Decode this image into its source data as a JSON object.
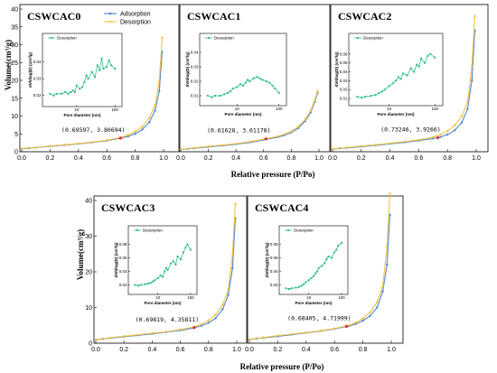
{
  "figure": {
    "ylabel": "Volume(cm³/g)",
    "xlabel": "Relative pressure (P/Po)",
    "legend": [
      "Adsorption",
      "Desorption"
    ]
  },
  "colors": {
    "adsorption": "#4f86d6",
    "desorption": "#f4c242",
    "inset_line": "#2fbf8a",
    "marker": "#e0312b"
  },
  "chart_data": [
    {
      "type": "line",
      "title": "CSWCAC0",
      "xlim": [
        0,
        1.0
      ],
      "ylim": [
        0,
        40
      ],
      "xticks": [
        "0.0",
        "0.2",
        "0.4",
        "0.6",
        "0.8",
        "1.0"
      ],
      "yticks": [
        "0",
        "5",
        "10",
        "15",
        "20",
        "25",
        "30",
        "35",
        "40"
      ],
      "annotation": "(0.69597, 3.80694)",
      "point": [
        0.69597,
        3.80694
      ],
      "series": [
        {
          "name": "Adsorption",
          "x": [
            0.0,
            0.05,
            0.1,
            0.2,
            0.3,
            0.4,
            0.5,
            0.6,
            0.7,
            0.75,
            0.8,
            0.85,
            0.9,
            0.94,
            0.97,
            0.99
          ],
          "y": [
            0.8,
            1.0,
            1.15,
            1.5,
            1.85,
            2.2,
            2.6,
            3.1,
            3.8,
            4.3,
            5.0,
            6.2,
            8.3,
            11.5,
            17.0,
            28.0
          ]
        },
        {
          "name": "Desorption",
          "x": [
            0.99,
            0.97,
            0.94,
            0.9,
            0.85,
            0.8,
            0.75,
            0.7,
            0.6,
            0.5,
            0.4,
            0.3,
            0.2,
            0.1,
            0.0
          ],
          "y": [
            32.0,
            20.0,
            13.0,
            9.5,
            7.0,
            5.6,
            4.7,
            4.0,
            3.2,
            2.7,
            2.3,
            1.95,
            1.6,
            1.2,
            0.9
          ]
        }
      ],
      "inset": {
        "xlabel": "Pore diameter (nm)",
        "ylabel": "dV/dlog(D) (cm³/g)",
        "legend": "Desorption",
        "xticks": [
          "10",
          "100"
        ],
        "yticks": [
          "0.02",
          "0.03",
          "0.04"
        ],
        "ylim": [
          0.015,
          0.05
        ],
        "x": [
          2,
          2.5,
          3,
          4,
          5,
          6,
          7,
          8,
          9,
          10,
          12,
          14,
          16,
          18,
          20,
          25,
          30,
          35,
          40,
          45,
          50,
          60,
          70,
          80,
          100
        ],
        "y": [
          0.021,
          0.02,
          0.021,
          0.021,
          0.022,
          0.021,
          0.022,
          0.023,
          0.022,
          0.026,
          0.024,
          0.025,
          0.028,
          0.032,
          0.03,
          0.034,
          0.031,
          0.038,
          0.035,
          0.042,
          0.036,
          0.037,
          0.041,
          0.038,
          0.036
        ]
      }
    },
    {
      "type": "line",
      "title": "CSWCAC1",
      "xlim": [
        0,
        1.0
      ],
      "ylim": [
        0,
        40
      ],
      "xticks": [
        "0.0",
        "0.2",
        "0.4",
        "0.6",
        "0.8",
        "1.0"
      ],
      "yticks": [],
      "annotation": "(0.61628, 3.61178)",
      "point": [
        0.61628,
        3.61178
      ],
      "series": [
        {
          "name": "Adsorption",
          "x": [
            0.0,
            0.05,
            0.1,
            0.2,
            0.3,
            0.4,
            0.5,
            0.6,
            0.7,
            0.75,
            0.8,
            0.85,
            0.9,
            0.94,
            0.97,
            0.99
          ],
          "y": [
            0.6,
            0.85,
            1.0,
            1.35,
            1.7,
            2.1,
            2.6,
            3.3,
            4.1,
            4.6,
            5.4,
            6.6,
            8.6,
            11.0,
            14.0,
            16.5
          ]
        },
        {
          "name": "Desorption",
          "x": [
            0.99,
            0.97,
            0.94,
            0.9,
            0.85,
            0.8,
            0.75,
            0.7,
            0.6,
            0.5,
            0.4,
            0.3,
            0.2,
            0.1,
            0.0
          ],
          "y": [
            17.0,
            14.5,
            11.5,
            9.0,
            7.0,
            5.7,
            4.9,
            4.3,
            3.5,
            2.8,
            2.25,
            1.85,
            1.5,
            1.1,
            0.7
          ]
        }
      ],
      "inset": {
        "xlabel": "Pore diameter (nm)",
        "ylabel": "dV/dlog(D) (cm³/g)",
        "legend": "Desorption",
        "xticks": [
          "10",
          "100"
        ],
        "yticks": [
          "0.01",
          "0.02",
          "0.03",
          "0.04"
        ],
        "ylim": [
          0.005,
          0.045
        ],
        "x": [
          2,
          2.5,
          3,
          4,
          5,
          6,
          7,
          8,
          10,
          12,
          14,
          16,
          18,
          20,
          25,
          30,
          35,
          40,
          50,
          60,
          70,
          80,
          100
        ],
        "y": [
          0.01,
          0.009,
          0.01,
          0.01,
          0.011,
          0.012,
          0.013,
          0.015,
          0.016,
          0.018,
          0.017,
          0.019,
          0.021,
          0.02,
          0.022,
          0.023,
          0.022,
          0.021,
          0.02,
          0.019,
          0.017,
          0.015,
          0.012
        ]
      }
    },
    {
      "type": "line",
      "title": "CSWCAC2",
      "xlim": [
        0,
        1.0
      ],
      "ylim": [
        0,
        40
      ],
      "xticks": [
        "0.0",
        "0.2",
        "0.4",
        "0.6",
        "0.8",
        "1.0"
      ],
      "yticks": [],
      "annotation": "(0.73246, 3.9266)",
      "point": [
        0.73246,
        3.9266
      ],
      "series": [
        {
          "name": "Adsorption",
          "x": [
            0.0,
            0.05,
            0.1,
            0.2,
            0.3,
            0.4,
            0.5,
            0.6,
            0.7,
            0.75,
            0.8,
            0.85,
            0.9,
            0.94,
            0.97,
            0.99
          ],
          "y": [
            0.7,
            0.95,
            1.1,
            1.45,
            1.8,
            2.2,
            2.6,
            3.1,
            3.7,
            4.1,
            4.8,
            6.0,
            8.2,
            12.0,
            20.0,
            34.0
          ]
        },
        {
          "name": "Desorption",
          "x": [
            0.99,
            0.97,
            0.94,
            0.9,
            0.85,
            0.8,
            0.75,
            0.7,
            0.6,
            0.5,
            0.4,
            0.3,
            0.2,
            0.1,
            0.0
          ],
          "y": [
            38.0,
            24.0,
            14.0,
            10.0,
            7.4,
            5.8,
            4.8,
            4.1,
            3.3,
            2.8,
            2.35,
            1.95,
            1.6,
            1.2,
            0.8
          ]
        }
      ],
      "inset": {
        "xlabel": "Pore diameter (nm)",
        "ylabel": "dV/dlog(D) (cm³/g)",
        "legend": "Desorption",
        "xticks": [
          "10",
          "100"
        ],
        "yticks": [
          "0.01",
          "0.02",
          "0.03",
          "0.04",
          "0.05",
          "0.06"
        ],
        "ylim": [
          0.005,
          0.07
        ],
        "x": [
          2,
          2.5,
          3,
          4,
          5,
          6,
          7,
          8,
          10,
          12,
          14,
          16,
          18,
          20,
          25,
          30,
          35,
          40,
          45,
          50,
          60,
          70,
          80,
          100
        ],
        "y": [
          0.012,
          0.011,
          0.012,
          0.013,
          0.014,
          0.016,
          0.018,
          0.02,
          0.024,
          0.027,
          0.03,
          0.034,
          0.032,
          0.038,
          0.036,
          0.044,
          0.04,
          0.048,
          0.046,
          0.055,
          0.05,
          0.058,
          0.06,
          0.056
        ]
      }
    },
    {
      "type": "line",
      "title": "CSWCAC3",
      "xlim": [
        0,
        1.0
      ],
      "ylim": [
        0,
        40
      ],
      "xticks": [
        "0.0",
        "0.2",
        "0.4",
        "0.6",
        "0.8",
        "1.0"
      ],
      "yticks": [
        "0",
        "10",
        "20",
        "30",
        "40"
      ],
      "annotation": "(0.69819, 4.35811)",
      "point": [
        0.69819,
        4.35811
      ],
      "series": [
        {
          "name": "Adsorption",
          "x": [
            0.0,
            0.05,
            0.1,
            0.2,
            0.3,
            0.4,
            0.5,
            0.6,
            0.7,
            0.75,
            0.8,
            0.85,
            0.9,
            0.94,
            0.97,
            0.99
          ],
          "y": [
            0.9,
            1.2,
            1.4,
            1.8,
            2.2,
            2.6,
            3.1,
            3.6,
            4.3,
            4.9,
            5.7,
            7.0,
            9.5,
            13.5,
            21.0,
            35.0
          ]
        },
        {
          "name": "Desorption",
          "x": [
            0.99,
            0.97,
            0.94,
            0.9,
            0.85,
            0.8,
            0.75,
            0.7,
            0.6,
            0.5,
            0.4,
            0.3,
            0.2,
            0.1,
            0.0
          ],
          "y": [
            39.0,
            25.0,
            15.0,
            10.8,
            8.0,
            6.4,
            5.3,
            4.6,
            3.8,
            3.2,
            2.8,
            2.35,
            1.95,
            1.5,
            1.0
          ]
        }
      ],
      "inset": {
        "xlabel": "Pore diameter (nm)",
        "ylabel": "dV/dlog(D) (cm³/g)",
        "legend": "Desorption",
        "xticks": [
          "10",
          "100"
        ],
        "yticks": [
          "0.02",
          "0.04",
          "0.06",
          "0.08"
        ],
        "ylim": [
          0.01,
          0.09
        ],
        "x": [
          2,
          2.5,
          3,
          4,
          5,
          6,
          7,
          8,
          10,
          12,
          14,
          16,
          18,
          20,
          25,
          30,
          35,
          40,
          50,
          60,
          70,
          80,
          100
        ],
        "y": [
          0.02,
          0.019,
          0.02,
          0.021,
          0.022,
          0.023,
          0.025,
          0.027,
          0.03,
          0.034,
          0.032,
          0.04,
          0.045,
          0.042,
          0.052,
          0.055,
          0.05,
          0.062,
          0.058,
          0.068,
          0.075,
          0.08,
          0.072
        ]
      }
    },
    {
      "type": "line",
      "title": "CSWCAC4",
      "xlim": [
        0,
        1.0
      ],
      "ylim": [
        0,
        40
      ],
      "xticks": [
        "0.0",
        "0.2",
        "0.4",
        "0.6",
        "0.8",
        "1.0"
      ],
      "yticks": [],
      "annotation": "(0.68405, 4.71999)",
      "point": [
        0.68405,
        4.71999
      ],
      "series": [
        {
          "name": "Adsorption",
          "x": [
            0.0,
            0.05,
            0.1,
            0.2,
            0.3,
            0.4,
            0.5,
            0.6,
            0.7,
            0.75,
            0.8,
            0.85,
            0.9,
            0.94,
            0.97,
            0.99
          ],
          "y": [
            1.0,
            1.3,
            1.5,
            1.9,
            2.4,
            2.9,
            3.4,
            4.0,
            4.8,
            5.4,
            6.3,
            7.6,
            10.0,
            14.5,
            22.0,
            36.0
          ]
        },
        {
          "name": "Desorption",
          "x": [
            0.99,
            0.97,
            0.94,
            0.9,
            0.85,
            0.8,
            0.75,
            0.7,
            0.6,
            0.5,
            0.4,
            0.3,
            0.2,
            0.1,
            0.0
          ],
          "y": [
            42.0,
            27.0,
            16.0,
            11.5,
            8.6,
            6.9,
            5.8,
            5.0,
            4.1,
            3.5,
            3.0,
            2.55,
            2.1,
            1.6,
            1.1
          ]
        }
      ],
      "inset": {
        "xlabel": "Pore diameter (nm)",
        "ylabel": "dV/dlog(D) (cm³/g)",
        "legend": "Desorption",
        "xticks": [
          "10",
          "100"
        ],
        "yticks": [
          "0.02",
          "0.04",
          "0.06",
          "0.08"
        ],
        "ylim": [
          0.01,
          0.09
        ],
        "x": [
          2,
          2.5,
          3,
          4,
          5,
          6,
          7,
          8,
          10,
          12,
          14,
          16,
          18,
          20,
          25,
          30,
          35,
          40,
          50,
          60,
          70,
          80,
          100
        ],
        "y": [
          0.015,
          0.014,
          0.015,
          0.016,
          0.017,
          0.019,
          0.021,
          0.024,
          0.027,
          0.03,
          0.033,
          0.037,
          0.04,
          0.045,
          0.048,
          0.052,
          0.058,
          0.062,
          0.06,
          0.068,
          0.072,
          0.078,
          0.082
        ]
      }
    }
  ]
}
